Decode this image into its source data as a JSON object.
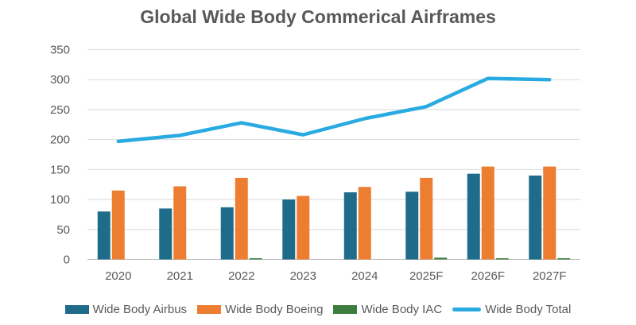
{
  "title": "Global Wide Body Commerical Airframes",
  "colors": {
    "text": "#595959",
    "grid": "#d9d9d9",
    "axis": "#bfbfbf",
    "background": "#ffffff"
  },
  "chart_data": {
    "type": "bar",
    "subtype": "grouped-bars-with-line-overlay",
    "title": "Global Wide Body Commerical Airframes",
    "categories": [
      "2020",
      "2021",
      "2022",
      "2023",
      "2024",
      "2025F",
      "2026F",
      "2027F"
    ],
    "series": [
      {
        "name": "Wide Body Airbus",
        "type": "bar",
        "color": "#1f6b8a",
        "values": [
          80,
          85,
          87,
          100,
          112,
          113,
          143,
          140
        ]
      },
      {
        "name": "Wide Body Boeing",
        "type": "bar",
        "color": "#ed7d31",
        "values": [
          115,
          122,
          136,
          106,
          121,
          136,
          155,
          155
        ]
      },
      {
        "name": "Wide Body IAC",
        "type": "bar",
        "color": "#3c7d3f",
        "values": [
          0,
          0,
          2,
          0,
          0,
          3,
          2,
          2
        ]
      },
      {
        "name": "Wide Body Total",
        "type": "line",
        "color": "#29abe2",
        "values": [
          197,
          207,
          228,
          208,
          235,
          255,
          302,
          300
        ]
      }
    ],
    "xlabel": "",
    "ylabel": "",
    "ylim": [
      0,
      350
    ],
    "yticks": [
      0,
      50,
      100,
      150,
      200,
      250,
      300,
      350
    ],
    "grid": true,
    "legend_position": "bottom"
  }
}
